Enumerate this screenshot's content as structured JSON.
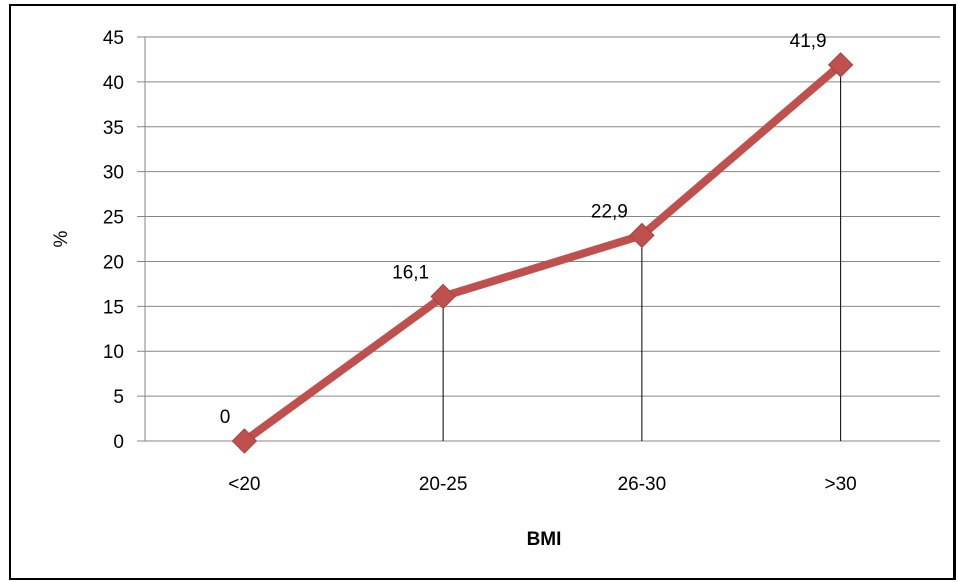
{
  "chart_data": {
    "type": "line",
    "categories": [
      "<20",
      "20-25",
      "26-30",
      ">30"
    ],
    "values": [
      0,
      16.1,
      22.9,
      41.9
    ],
    "data_labels": [
      "0",
      "16,1",
      "22,9",
      "41,9"
    ],
    "xlabel": "BMI",
    "ylabel": "%",
    "ylim": [
      0,
      45
    ],
    "yticks": [
      "0",
      "5",
      "10",
      "15",
      "20",
      "25",
      "30",
      "35",
      "40",
      "45"
    ],
    "grid": "horizontal",
    "drop_lines": true,
    "series_color": "#c0504d",
    "gridline_color": "#868686"
  }
}
